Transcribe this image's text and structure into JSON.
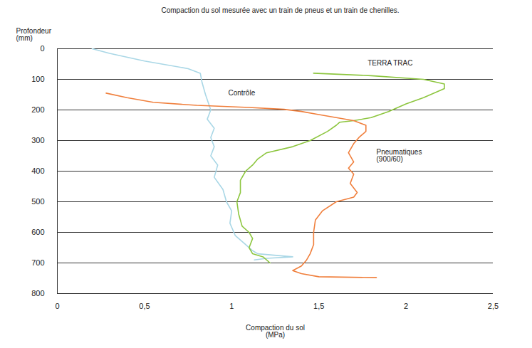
{
  "chart_data": {
    "type": "line",
    "title": "Compaction du sol mesurée avec un train de pneus et un train de chenilles.",
    "x_label": "Compaction du sol (MPa)",
    "y_label": "Profondeur (mm)",
    "xlim": [
      0,
      2.5
    ],
    "xticks": [
      0,
      {
        "value": 0.5,
        "label": "0,5"
      },
      1,
      {
        "value": 1.5,
        "label": "1,5"
      },
      2,
      {
        "value": 2.5,
        "label": "2,5"
      }
    ],
    "ylim": [
      800,
      0
    ],
    "yticks": [
      0,
      100,
      200,
      300,
      400,
      500,
      600,
      700,
      800
    ],
    "grid": true,
    "series": [
      {
        "name": "Contrôle",
        "color": "#a9d7e6",
        "x": [
          0.2,
          0.3,
          0.5,
          0.75,
          0.82,
          0.83,
          0.85,
          0.88,
          0.86,
          0.9,
          0.88,
          0.9,
          0.88,
          0.92,
          0.9,
          0.95,
          0.97,
          1.0,
          0.99,
          1.02,
          1.08,
          1.12,
          1.15,
          1.35,
          1.2,
          1.13
        ],
        "y": [
          0,
          15,
          40,
          65,
          80,
          110,
          150,
          200,
          230,
          260,
          290,
          320,
          350,
          380,
          420,
          460,
          500,
          530,
          570,
          610,
          640,
          660,
          670,
          680,
          685,
          690
        ]
      },
      {
        "name": "TERRA TRAC",
        "color": "#8dc63f",
        "x": [
          1.47,
          1.8,
          2.1,
          2.22,
          2.22,
          2.1,
          2.0,
          1.9,
          1.8,
          1.7,
          1.62,
          1.6,
          1.55,
          1.45,
          1.35,
          1.2,
          1.15,
          1.12,
          1.08,
          1.05,
          1.05,
          1.03,
          1.04,
          1.06,
          1.1,
          1.12,
          1.1,
          1.12,
          1.18,
          1.22
        ],
        "y": [
          80,
          88,
          100,
          115,
          130,
          160,
          180,
          205,
          225,
          235,
          240,
          250,
          270,
          300,
          320,
          340,
          360,
          380,
          400,
          430,
          470,
          500,
          540,
          580,
          600,
          620,
          650,
          670,
          680,
          700
        ]
      },
      {
        "name": "Pneumatiques (900/60)",
        "color": "#f07f3c",
        "x": [
          0.28,
          0.4,
          0.55,
          0.8,
          1.1,
          1.3,
          1.4,
          1.5,
          1.6,
          1.7,
          1.77,
          1.77,
          1.73,
          1.7,
          1.67,
          1.7,
          1.67,
          1.7,
          1.68,
          1.72,
          1.7,
          1.6,
          1.52,
          1.48,
          1.47,
          1.47,
          1.45,
          1.43,
          1.4,
          1.35,
          1.4,
          1.5,
          1.83
        ],
        "y": [
          145,
          160,
          175,
          185,
          192,
          198,
          205,
          215,
          225,
          235,
          250,
          270,
          290,
          310,
          340,
          370,
          390,
          410,
          440,
          470,
          485,
          500,
          530,
          560,
          600,
          640,
          670,
          690,
          710,
          725,
          735,
          745,
          748
        ]
      }
    ]
  }
}
